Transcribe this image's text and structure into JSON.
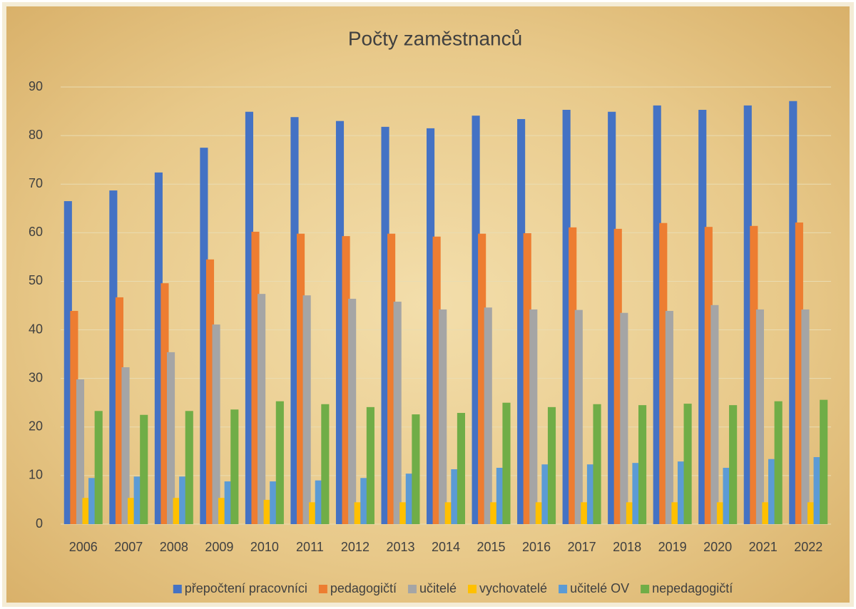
{
  "chart_data": {
    "type": "bar",
    "title": "Počty zaměstnanců",
    "categories": [
      "2006",
      "2007",
      "2008",
      "2009",
      "2010",
      "2011",
      "2012",
      "2013",
      "2014",
      "2015",
      "2016",
      "2017",
      "2018",
      "2019",
      "2020",
      "2021",
      "2022"
    ],
    "series": [
      {
        "name": "přepočtení pracovníci",
        "color": "#4472c4",
        "values": [
          66.5,
          68.7,
          72.4,
          77.5,
          84.9,
          83.8,
          83.0,
          81.8,
          81.5,
          84.1,
          83.4,
          85.3,
          84.9,
          86.2,
          85.3,
          86.2,
          87.1
        ]
      },
      {
        "name": "pedagogičtí",
        "color": "#ed7d31",
        "values": [
          43.9,
          46.7,
          49.6,
          54.5,
          60.2,
          59.8,
          59.3,
          59.8,
          59.2,
          59.8,
          59.9,
          61.1,
          60.8,
          62.0,
          61.2,
          61.4,
          62.1
        ]
      },
      {
        "name": "učitelé",
        "color": "#a5a5a5",
        "values": [
          29.8,
          32.3,
          35.4,
          41.1,
          47.4,
          47.1,
          46.4,
          45.8,
          44.2,
          44.6,
          44.2,
          44.1,
          43.5,
          43.9,
          45.1,
          44.2,
          44.2
        ]
      },
      {
        "name": "vychovatelé",
        "color": "#ffc000",
        "values": [
          5.4,
          5.4,
          5.4,
          5.4,
          5.0,
          4.5,
          4.5,
          4.5,
          4.5,
          4.5,
          4.5,
          4.5,
          4.5,
          4.5,
          4.5,
          4.5,
          4.5
        ]
      },
      {
        "name": "učitelé OV",
        "color": "#5b9bd5",
        "values": [
          9.5,
          9.8,
          9.8,
          8.8,
          8.8,
          9.0,
          9.5,
          10.4,
          11.3,
          11.6,
          12.3,
          12.3,
          12.6,
          12.9,
          11.6,
          13.4,
          13.8
        ]
      },
      {
        "name": "nepedagogičtí",
        "color": "#70ad47",
        "values": [
          23.3,
          22.5,
          23.3,
          23.6,
          25.3,
          24.7,
          24.1,
          22.6,
          22.9,
          25.0,
          24.1,
          24.7,
          24.5,
          24.8,
          24.5,
          25.3,
          25.6
        ]
      }
    ],
    "ylim": [
      0,
      90
    ],
    "yticks": [
      0,
      10,
      20,
      30,
      40,
      50,
      60,
      70,
      80,
      90
    ],
    "grid": true,
    "legend": "bottom"
  }
}
